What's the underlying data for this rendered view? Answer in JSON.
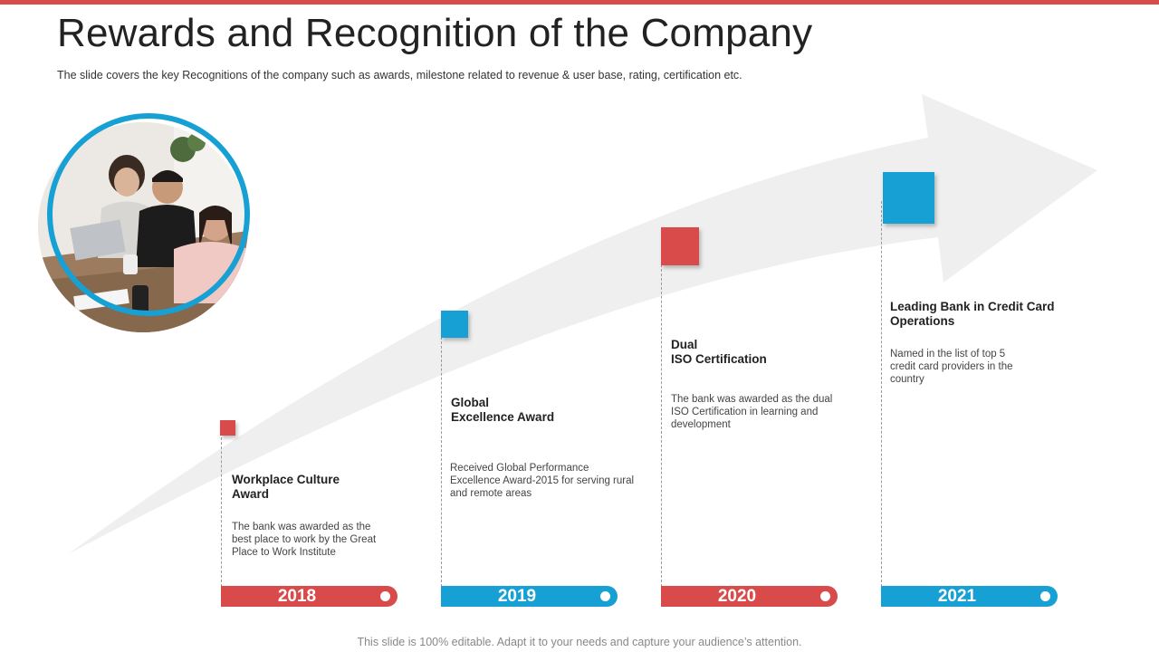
{
  "slide": {
    "title": "Rewards and Recognition of the Company",
    "subtitle": "The slide covers the key Recognitions of the company such as awards, milestone related to revenue  & user base, rating, certification etc.",
    "footer": "This slide is 100% editable. Adapt it to your needs and capture your audience’s attention."
  },
  "colors": {
    "accent_red": "#d94a4a",
    "accent_blue": "#17a0d3",
    "arrow_gray": "#efefef"
  },
  "milestones": [
    {
      "year": "2018",
      "title": "Workplace Culture\nAward",
      "description": "The bank was awarded as the\nbest place to work by the Great\nPlace to Work Institute",
      "color": "red"
    },
    {
      "year": "2019",
      "title": "Global\nExcellence Award",
      "description": "Received Global Performance\nExcellence Award-2015 for serving rural\nand remote areas",
      "color": "blue"
    },
    {
      "year": "2020",
      "title": "Dual\nISO Certification",
      "description": "The bank was awarded as the dual\nISO Certification in learning and\ndevelopment",
      "color": "red"
    },
    {
      "year": "2021",
      "title": "Leading Bank in Credit Card\nOperations",
      "description": "Named in the list of top 5\ncredit card providers in the\ncountry",
      "color": "blue"
    }
  ]
}
